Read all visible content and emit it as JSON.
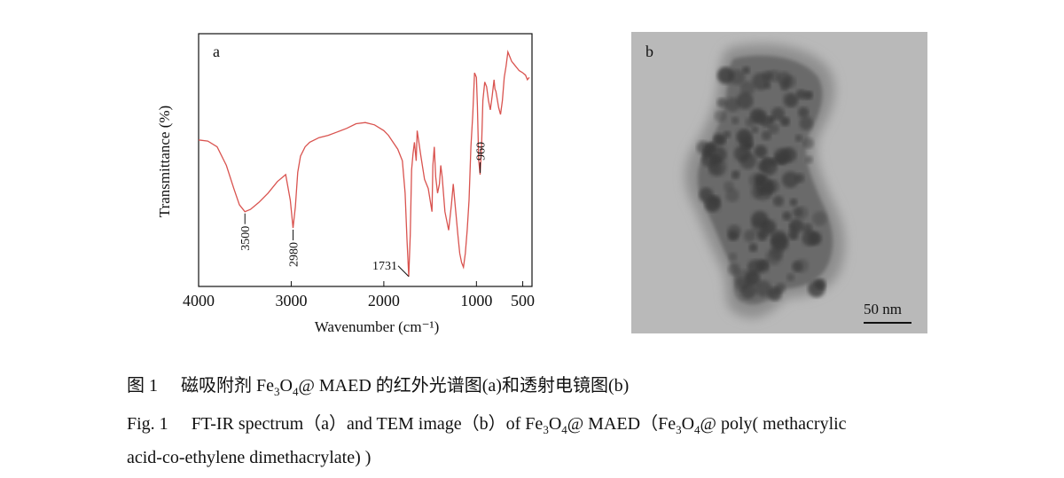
{
  "chart_data": {
    "type": "line",
    "panel_label": "a",
    "ylabel": "Transmittance (%)",
    "xlabel": "Wavenumber (cm⁻¹)",
    "xlim": [
      4000,
      400
    ],
    "ylim": [
      0,
      100
    ],
    "x_reversed": true,
    "xticks": [
      4000,
      3000,
      2000,
      1000,
      500
    ],
    "grid": false,
    "line_color": "#d9534f",
    "series": [
      {
        "x": [
          4000,
          3900,
          3800,
          3700,
          3620,
          3560,
          3500,
          3440,
          3350,
          3250,
          3150,
          3060,
          3010,
          2980,
          2955,
          2930,
          2900,
          2850,
          2800,
          2700,
          2600,
          2500,
          2400,
          2300,
          2200,
          2100,
          2000,
          1950,
          1900,
          1850,
          1800,
          1770,
          1750,
          1731,
          1715,
          1700,
          1685,
          1670,
          1650,
          1640,
          1600,
          1560,
          1520,
          1480,
          1470,
          1455,
          1440,
          1420,
          1400,
          1385,
          1370,
          1340,
          1300,
          1270,
          1250,
          1230,
          1200,
          1180,
          1160,
          1140,
          1120,
          1100,
          1080,
          1060,
          1040,
          1020,
          1000,
          990,
          980,
          975,
          960,
          945,
          930,
          910,
          890,
          870,
          850,
          830,
          810,
          800,
          790,
          760,
          740,
          720,
          700,
          680,
          660,
          640,
          620,
          600,
          580,
          560,
          540,
          520,
          500,
          470,
          450,
          430
        ],
        "y": [
          61,
          60.5,
          58,
          50,
          40,
          33,
          30,
          31,
          34,
          38,
          43,
          46,
          35,
          23,
          32,
          47,
          54,
          58,
          60,
          62,
          63,
          64.5,
          66,
          68,
          68.5,
          67.5,
          65,
          63,
          60,
          57,
          52,
          38,
          18,
          2,
          20,
          48,
          55,
          60,
          52,
          65,
          54,
          44,
          40,
          30,
          50,
          58,
          45,
          38,
          42,
          50,
          45,
          30,
          22,
          33,
          42,
          33,
          20,
          12,
          8,
          6,
          12,
          22,
          35,
          58,
          72,
          90,
          88,
          76,
          60,
          52,
          46,
          58,
          78,
          86,
          84,
          78,
          74,
          80,
          87,
          83,
          82,
          75,
          72,
          78,
          88,
          93,
          99,
          97,
          95,
          94,
          93,
          92,
          91,
          90.5,
          90,
          89,
          87,
          88
        ]
      }
    ],
    "annotations": [
      {
        "label": "3500",
        "x": 3500,
        "y": 30,
        "orientation": "vertical",
        "side": "below"
      },
      {
        "label": "2980",
        "x": 2980,
        "y": 23,
        "orientation": "vertical",
        "side": "below"
      },
      {
        "label": "1731",
        "x": 1731,
        "y": 2,
        "orientation": "horizontal",
        "side": "left"
      },
      {
        "label": "960",
        "x": 960,
        "y": 46,
        "orientation": "vertical",
        "side": "above"
      }
    ]
  },
  "tem": {
    "panel_label": "b",
    "scale_label": "50 nm",
    "background_color": "#b9b9b9",
    "particle_color": "#3a3a3a"
  },
  "caption": {
    "cn_fig_label": "图 1",
    "cn_text_before": "磁吸附剂 Fe",
    "cn_sub1": "3",
    "cn_mid": "O",
    "cn_sub2": "4",
    "cn_text_after": "@ MAED 的红外光谱图(a)和透射电镜图(b)",
    "en_fig_label": "Fig. 1",
    "en_text_before": "FT-IR spectrum（a）and TEM image（b）of Fe",
    "en_sub1": "3",
    "en_mid1": "O",
    "en_sub2": "4",
    "en_text_mid": "@ MAED（Fe",
    "en_sub3": "3",
    "en_mid2": "O",
    "en_sub4": "4",
    "en_text_after": "@ poly( methacrylic",
    "en_line2": "acid-co-ethylene dimethacrylate) )"
  }
}
